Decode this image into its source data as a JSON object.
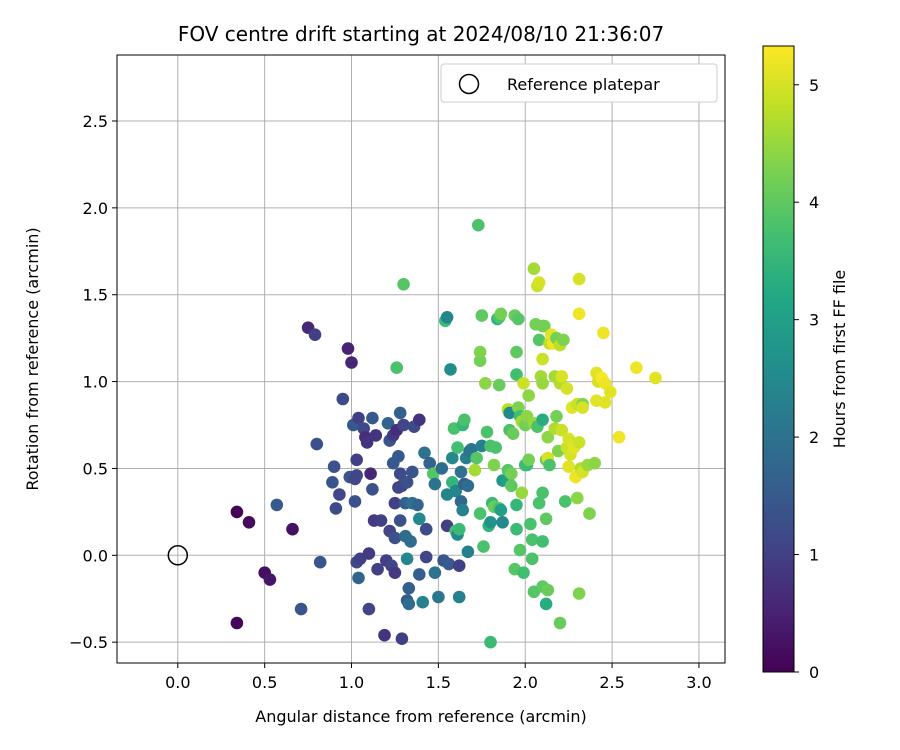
{
  "chart_data": {
    "type": "scatter",
    "title": "FOV centre drift starting at 2024/08/10 21:36:07",
    "xlabel": "Angular distance from reference (arcmin)",
    "ylabel": "Rotation from reference (arcmin)",
    "xlim": [
      -0.35,
      3.15
    ],
    "ylim": [
      -0.62,
      2.88
    ],
    "xticks": [
      "0.0",
      "0.5",
      "1.0",
      "1.5",
      "2.0",
      "2.5",
      "3.0"
    ],
    "yticks": [
      "−0.5",
      "0.0",
      "0.5",
      "1.0",
      "1.5",
      "2.0",
      "2.5"
    ],
    "xtick_values": [
      0,
      0.5,
      1,
      1.5,
      2,
      2.5,
      3
    ],
    "ytick_values": [
      -0.5,
      0,
      0.5,
      1,
      1.5,
      2,
      2.5
    ],
    "grid": true,
    "colormap": "viridis",
    "colorbar": {
      "label": "Hours from first FF file",
      "range": [
        0,
        5.33
      ],
      "ticks": [
        "0",
        "1",
        "2",
        "3",
        "4",
        "5"
      ],
      "tick_values": [
        0,
        1,
        2,
        3,
        4,
        5
      ]
    },
    "legend": {
      "placement": "upper right",
      "entries": [
        {
          "label": "Reference platepar",
          "marker": "open-circle"
        }
      ]
    },
    "reference_point": {
      "x": 0,
      "y": 0
    },
    "points_columns": [
      "x",
      "y",
      "hours"
    ],
    "points": [
      [
        0.34,
        -0.39,
        0.08
      ],
      [
        0.34,
        0.25,
        0.05
      ],
      [
        0.41,
        0.19,
        0.15
      ],
      [
        0.5,
        -0.1,
        0.2
      ],
      [
        0.53,
        -0.14,
        0.3
      ],
      [
        0.57,
        0.29,
        1.5
      ],
      [
        0.66,
        0.15,
        0.25
      ],
      [
        0.71,
        -0.31,
        1.4
      ],
      [
        0.75,
        1.31,
        0.6
      ],
      [
        0.79,
        1.27,
        1.0
      ],
      [
        0.8,
        0.64,
        1.3
      ],
      [
        0.82,
        -0.04,
        1.4
      ],
      [
        0.89,
        0.42,
        1.4
      ],
      [
        0.9,
        0.51,
        1.35
      ],
      [
        0.91,
        0.27,
        1.2
      ],
      [
        0.93,
        0.35,
        1.1
      ],
      [
        0.95,
        0.9,
        1.2
      ],
      [
        0.98,
        1.19,
        0.5
      ],
      [
        0.99,
        0.45,
        1.4
      ],
      [
        1.0,
        1.11,
        0.6
      ],
      [
        1.01,
        0.75,
        1.5
      ],
      [
        1.02,
        0.44,
        1.1
      ],
      [
        1.02,
        0.31,
        1.3
      ],
      [
        1.03,
        -0.04,
        1.2
      ],
      [
        1.03,
        0.55,
        1.0
      ],
      [
        1.03,
        0.46,
        1.1
      ],
      [
        1.04,
        0.79,
        1.0
      ],
      [
        1.04,
        -0.13,
        1.7
      ],
      [
        1.05,
        -0.02,
        1.0
      ],
      [
        1.07,
        0.73,
        1.15
      ],
      [
        1.08,
        0.68,
        0.7
      ],
      [
        1.09,
        0.65,
        0.8
      ],
      [
        1.1,
        -0.31,
        1.1
      ],
      [
        1.1,
        0.01,
        0.9
      ],
      [
        1.11,
        0.47,
        0.6
      ],
      [
        1.12,
        0.79,
        1.5
      ],
      [
        1.12,
        0.38,
        1.3
      ],
      [
        1.13,
        0.2,
        0.9
      ],
      [
        1.14,
        0.69,
        0.8
      ],
      [
        1.15,
        -0.08,
        1.0
      ],
      [
        1.17,
        0.2,
        1.0
      ],
      [
        1.19,
        -0.46,
        0.8
      ],
      [
        1.2,
        -0.03,
        1.0
      ],
      [
        1.21,
        0.76,
        1.7
      ],
      [
        1.22,
        0.14,
        1.1
      ],
      [
        1.22,
        0.66,
        1.4
      ],
      [
        1.23,
        -0.06,
        1.1
      ],
      [
        1.24,
        0.53,
        1.5
      ],
      [
        1.24,
        0.69,
        0.9
      ],
      [
        1.25,
        0.3,
        1.0
      ],
      [
        1.25,
        -0.1,
        0.9
      ],
      [
        1.25,
        0.1,
        1.3
      ],
      [
        1.26,
        0.72,
        0.7
      ],
      [
        1.26,
        1.08,
        3.8
      ],
      [
        1.27,
        0.39,
        1.1
      ],
      [
        1.27,
        0.57,
        1.5
      ],
      [
        1.28,
        0.82,
        1.6
      ],
      [
        1.28,
        0.2,
        1.3
      ],
      [
        1.28,
        0.47,
        1.2
      ],
      [
        1.29,
        -0.48,
        1.0
      ],
      [
        1.29,
        0.4,
        1.1
      ],
      [
        1.3,
        1.56,
        3.9
      ],
      [
        1.3,
        0.75,
        1.1
      ],
      [
        1.31,
        0.11,
        1.9
      ],
      [
        1.31,
        0.3,
        1.6
      ],
      [
        1.32,
        -0.02,
        2.4
      ],
      [
        1.32,
        0.42,
        1.3
      ],
      [
        1.32,
        -0.26,
        1.5
      ],
      [
        1.33,
        -0.28,
        1.9
      ],
      [
        1.33,
        -0.19,
        1.6
      ],
      [
        1.34,
        0.08,
        1.9
      ],
      [
        1.35,
        0.48,
        1.4
      ],
      [
        1.35,
        0.3,
        2.0
      ],
      [
        1.36,
        0.74,
        1.2
      ],
      [
        1.38,
        0.29,
        1.7
      ],
      [
        1.39,
        0.78,
        0.8
      ],
      [
        1.39,
        0.21,
        2.5
      ],
      [
        1.39,
        -0.11,
        1.6
      ],
      [
        1.41,
        -0.27,
        2.3
      ],
      [
        1.42,
        0.59,
        2.0
      ],
      [
        1.43,
        0.15,
        1.2
      ],
      [
        1.43,
        -0.01,
        1.1
      ],
      [
        1.45,
        0.53,
        1.7
      ],
      [
        1.47,
        0.47,
        3.9
      ],
      [
        1.48,
        -0.1,
        2.0
      ],
      [
        1.48,
        0.41,
        2.0
      ],
      [
        1.5,
        -0.24,
        2.1
      ],
      [
        1.52,
        0.5,
        1.9
      ],
      [
        1.53,
        -0.03,
        1.4
      ],
      [
        1.54,
        1.35,
        3.6
      ],
      [
        1.55,
        0.35,
        2.4
      ],
      [
        1.55,
        1.37,
        2.4
      ],
      [
        1.55,
        0.17,
        1.0
      ],
      [
        1.56,
        -0.05,
        1.5
      ],
      [
        1.57,
        1.07,
        2.6
      ],
      [
        1.58,
        0.56,
        2.5
      ],
      [
        1.58,
        0.42,
        3.5
      ],
      [
        1.59,
        0.73,
        3.8
      ],
      [
        1.6,
        0.14,
        3.8
      ],
      [
        1.6,
        0.37,
        2.4
      ],
      [
        1.61,
        0.62,
        3.7
      ],
      [
        1.61,
        0.12,
        2.5
      ],
      [
        1.62,
        -0.24,
        2.3
      ],
      [
        1.62,
        0.15,
        3.6
      ],
      [
        1.62,
        -0.06,
        1.0
      ],
      [
        1.63,
        0.31,
        1.8
      ],
      [
        1.63,
        0.48,
        2.0
      ],
      [
        1.64,
        0.26,
        2.3
      ],
      [
        1.64,
        0.75,
        3.5
      ],
      [
        1.65,
        0.41,
        1.6
      ],
      [
        1.65,
        0.78,
        3.8
      ],
      [
        1.66,
        0.56,
        2.3
      ],
      [
        1.67,
        0.4,
        1.9
      ],
      [
        1.67,
        0.02,
        2.3
      ],
      [
        1.68,
        0.6,
        2.0
      ],
      [
        1.69,
        0.61,
        2.1
      ],
      [
        1.71,
        0.49,
        4.6
      ],
      [
        1.72,
        0.56,
        3.9
      ],
      [
        1.73,
        1.9,
        3.8
      ],
      [
        1.74,
        1.12,
        4.2
      ],
      [
        1.74,
        1.17,
        4.3
      ],
      [
        1.74,
        0.24,
        3.8
      ],
      [
        1.75,
        1.38,
        4.0
      ],
      [
        1.75,
        0.63,
        2.3
      ],
      [
        1.76,
        0.05,
        3.8
      ],
      [
        1.77,
        0.99,
        4.4
      ],
      [
        1.78,
        0.71,
        3.8
      ],
      [
        1.79,
        0.17,
        3.5
      ],
      [
        1.8,
        0.63,
        3.8
      ],
      [
        1.8,
        -0.5,
        3.6
      ],
      [
        1.8,
        0.19,
        2.7
      ],
      [
        1.81,
        0.3,
        3.6
      ],
      [
        1.82,
        0.28,
        4.1
      ],
      [
        1.82,
        0.52,
        4.3
      ],
      [
        1.83,
        0.62,
        3.8
      ],
      [
        1.84,
        1.36,
        3.4
      ],
      [
        1.85,
        0.98,
        4.1
      ],
      [
        1.85,
        0.27,
        3.8
      ],
      [
        1.85,
        1.37,
        3.8
      ],
      [
        1.86,
        1.39,
        4.2
      ],
      [
        1.86,
        0.26,
        3.0
      ],
      [
        1.87,
        0.43,
        2.8
      ],
      [
        1.87,
        0.19,
        2.5
      ],
      [
        1.9,
        0.43,
        3.0
      ],
      [
        1.9,
        0.49,
        3.9
      ],
      [
        1.9,
        0.84,
        4.8
      ],
      [
        1.91,
        0.82,
        2.5
      ],
      [
        1.91,
        0.72,
        3.8
      ],
      [
        1.92,
        0.47,
        4.2
      ],
      [
        1.92,
        0.4,
        4.0
      ],
      [
        1.93,
        0.7,
        4.1
      ],
      [
        1.94,
        1.38,
        4.1
      ],
      [
        1.94,
        -0.08,
        3.9
      ],
      [
        1.95,
        1.17,
        4.0
      ],
      [
        1.95,
        1.04,
        3.7
      ],
      [
        1.95,
        0.15,
        3.6
      ],
      [
        1.95,
        0.29,
        3.5
      ],
      [
        1.96,
        0.85,
        4.3
      ],
      [
        1.96,
        1.36,
        3.9
      ],
      [
        1.97,
        0.8,
        3.7
      ],
      [
        1.97,
        0.03,
        3.9
      ],
      [
        1.98,
        0.36,
        4.5
      ],
      [
        1.98,
        0.77,
        4.6
      ],
      [
        1.99,
        -0.1,
        3.7
      ],
      [
        1.99,
        0.99,
        4.9
      ],
      [
        2.0,
        0.52,
        3.7
      ],
      [
        2.0,
        0.75,
        4.2
      ],
      [
        2.01,
        0.52,
        3.6
      ],
      [
        2.01,
        0.8,
        4.4
      ],
      [
        2.02,
        0.92,
        4.4
      ],
      [
        2.02,
        0.55,
        4.2
      ],
      [
        2.03,
        0.18,
        3.8
      ],
      [
        2.04,
        0.09,
        3.8
      ],
      [
        2.04,
        -0.02,
        3.8
      ],
      [
        2.05,
        0.76,
        4.5
      ],
      [
        2.05,
        1.65,
        4.6
      ],
      [
        2.05,
        -0.21,
        3.9
      ],
      [
        2.06,
        1.33,
        4.2
      ],
      [
        2.07,
        1.55,
        4.9
      ],
      [
        2.07,
        0.74,
        3.8
      ],
      [
        2.08,
        1.57,
        5.0
      ],
      [
        2.08,
        1.24,
        3.9
      ],
      [
        2.08,
        0.3,
        3.8
      ],
      [
        2.09,
        1.03,
        4.6
      ],
      [
        2.1,
        0.08,
        3.7
      ],
      [
        2.1,
        -0.18,
        4.0
      ],
      [
        2.1,
        1.13,
        4.9
      ],
      [
        2.1,
        1.32,
        4.2
      ],
      [
        2.1,
        0.36,
        3.8
      ],
      [
        2.1,
        0.78,
        3.3
      ],
      [
        2.1,
        0.99,
        4.5
      ],
      [
        2.11,
        1.32,
        4.2
      ],
      [
        2.12,
        0.21,
        4.0
      ],
      [
        2.12,
        0.55,
        4.1
      ],
      [
        2.12,
        -0.28,
        3.3
      ],
      [
        2.13,
        0.56,
        5.0
      ],
      [
        2.13,
        -0.2,
        4.1
      ],
      [
        2.13,
        0.68,
        4.4
      ],
      [
        2.14,
        1.22,
        4.8
      ],
      [
        2.14,
        0.52,
        3.8
      ],
      [
        2.15,
        1.27,
        5.1
      ],
      [
        2.16,
        1.22,
        5.2
      ],
      [
        2.17,
        1.03,
        4.6
      ],
      [
        2.17,
        0.73,
        4.7
      ],
      [
        2.18,
        1.25,
        4.2
      ],
      [
        2.18,
        0.8,
        4.2
      ],
      [
        2.19,
        0.6,
        4.3
      ],
      [
        2.2,
        1.21,
        4.8
      ],
      [
        2.2,
        0.99,
        4.7
      ],
      [
        2.2,
        -0.39,
        4.1
      ],
      [
        2.21,
        1.03,
        5.0
      ],
      [
        2.21,
        0.72,
        4.9
      ],
      [
        2.22,
        1.24,
        4.3
      ],
      [
        2.23,
        0.31,
        3.8
      ],
      [
        2.24,
        0.96,
        5.0
      ],
      [
        2.24,
        0.62,
        4.9
      ],
      [
        2.25,
        0.67,
        5.0
      ],
      [
        2.25,
        0.51,
        5.1
      ],
      [
        2.26,
        0.58,
        5.0
      ],
      [
        2.27,
        0.85,
        5.1
      ],
      [
        2.28,
        0.62,
        5.1
      ],
      [
        2.29,
        0.45,
        5.2
      ],
      [
        2.3,
        0.87,
        4.9
      ],
      [
        2.3,
        0.33,
        4.4
      ],
      [
        2.31,
        1.59,
        5.0
      ],
      [
        2.31,
        0.65,
        4.9
      ],
      [
        2.31,
        -0.22,
        4.3
      ],
      [
        2.31,
        1.39,
        5.2
      ],
      [
        2.32,
        0.5,
        4.7
      ],
      [
        2.33,
        0.48,
        5.0
      ],
      [
        2.33,
        0.87,
        4.3
      ],
      [
        2.33,
        0.85,
        5.0
      ],
      [
        2.36,
        0.52,
        4.5
      ],
      [
        2.37,
        0.24,
        4.3
      ],
      [
        2.4,
        0.53,
        4.4
      ],
      [
        2.41,
        1.05,
        5.1
      ],
      [
        2.41,
        0.89,
        5.1
      ],
      [
        2.42,
        1.0,
        5.0
      ],
      [
        2.44,
        1.02,
        5.3
      ],
      [
        2.45,
        1.28,
        5.2
      ],
      [
        2.46,
        0.88,
        5.1
      ],
      [
        2.46,
        0.99,
        5.2
      ],
      [
        2.49,
        0.94,
        5.1
      ],
      [
        2.54,
        0.68,
        5.2
      ],
      [
        2.64,
        1.08,
        5.2
      ],
      [
        2.75,
        1.02,
        5.1
      ]
    ]
  }
}
